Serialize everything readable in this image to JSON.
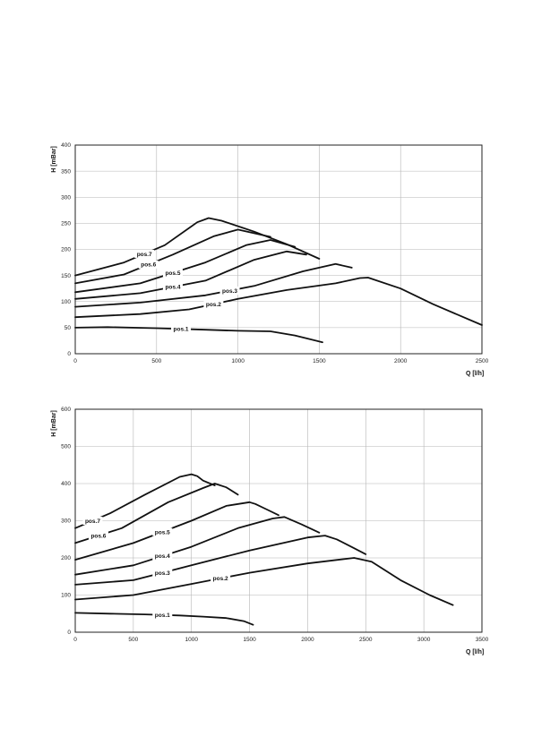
{
  "chart_data": [
    {
      "type": "line",
      "xlabel": "Q [l/h]",
      "ylabel": "H [mBar]",
      "xlim": [
        0,
        2500
      ],
      "ylim": [
        0,
        400
      ],
      "xticks": [
        0,
        500,
        1000,
        1500,
        2000,
        2500
      ],
      "yticks": [
        0,
        50,
        100,
        150,
        200,
        250,
        300,
        350,
        400
      ],
      "grid": true,
      "series": [
        {
          "name": "pos.1",
          "x": [
            0,
            200,
            500,
            800,
            1000,
            1200,
            1350,
            1520
          ],
          "y": [
            50,
            51,
            49,
            46,
            44,
            43,
            35,
            22
          ]
        },
        {
          "name": "pos.2",
          "x": [
            0,
            400,
            700,
            1000,
            1300,
            1600,
            1750,
            1800,
            2000,
            2200,
            2500
          ],
          "y": [
            70,
            76,
            85,
            105,
            122,
            135,
            145,
            146,
            125,
            95,
            55
          ]
        },
        {
          "name": "pos.3",
          "x": [
            0,
            400,
            800,
            1100,
            1400,
            1600,
            1700
          ],
          "y": [
            90,
            98,
            112,
            130,
            158,
            172,
            165
          ]
        },
        {
          "name": "pos.4",
          "x": [
            0,
            400,
            800,
            1100,
            1300,
            1420
          ],
          "y": [
            105,
            116,
            140,
            180,
            196,
            190
          ]
        },
        {
          "name": "pos.5",
          "x": [
            0,
            400,
            800,
            1050,
            1200,
            1350
          ],
          "y": [
            118,
            135,
            175,
            208,
            218,
            205
          ]
        },
        {
          "name": "pos.6",
          "x": [
            0,
            300,
            600,
            850,
            1000,
            1200
          ],
          "y": [
            135,
            152,
            190,
            225,
            238,
            224
          ]
        },
        {
          "name": "pos.7",
          "x": [
            0,
            300,
            550,
            750,
            820,
            900,
            1100,
            1300,
            1500
          ],
          "y": [
            150,
            175,
            208,
            252,
            260,
            255,
            234,
            210,
            182
          ]
        }
      ]
    },
    {
      "type": "line",
      "xlabel": "Q [l/h]",
      "ylabel": "H [mBar]",
      "xlim": [
        0,
        3500
      ],
      "ylim": [
        0,
        600
      ],
      "xticks": [
        0,
        500,
        1000,
        1500,
        2000,
        2500,
        3000,
        3500
      ],
      "yticks": [
        0,
        100,
        200,
        300,
        400,
        500,
        600
      ],
      "grid": true,
      "series": [
        {
          "name": "pos.1",
          "x": [
            0,
            300,
            600,
            900,
            1100,
            1300,
            1450,
            1530
          ],
          "y": [
            52,
            50,
            48,
            45,
            42,
            38,
            30,
            20
          ]
        },
        {
          "name": "pos.2",
          "x": [
            0,
            500,
            1000,
            1500,
            2000,
            2400,
            2550,
            2800,
            3050,
            3250
          ],
          "y": [
            88,
            100,
            130,
            160,
            185,
            200,
            190,
            140,
            100,
            73
          ]
        },
        {
          "name": "pos.3",
          "x": [
            0,
            500,
            1000,
            1500,
            2000,
            2150,
            2250,
            2400,
            2500
          ],
          "y": [
            128,
            140,
            180,
            220,
            255,
            260,
            250,
            226,
            210
          ]
        },
        {
          "name": "pos.4",
          "x": [
            0,
            500,
            1000,
            1400,
            1700,
            1800,
            1950,
            2100
          ],
          "y": [
            155,
            180,
            230,
            280,
            306,
            310,
            290,
            268
          ]
        },
        {
          "name": "pos.5",
          "x": [
            0,
            500,
            1000,
            1300,
            1500,
            1550,
            1650,
            1750
          ],
          "y": [
            195,
            240,
            300,
            340,
            350,
            345,
            330,
            315
          ]
        },
        {
          "name": "pos.6",
          "x": [
            0,
            400,
            800,
            1100,
            1200,
            1300,
            1400
          ],
          "y": [
            240,
            280,
            350,
            388,
            400,
            390,
            370
          ]
        },
        {
          "name": "pos.7",
          "x": [
            0,
            300,
            600,
            900,
            1000,
            1050,
            1100,
            1200
          ],
          "y": [
            280,
            320,
            370,
            418,
            425,
            420,
            408,
            395
          ]
        }
      ]
    }
  ]
}
